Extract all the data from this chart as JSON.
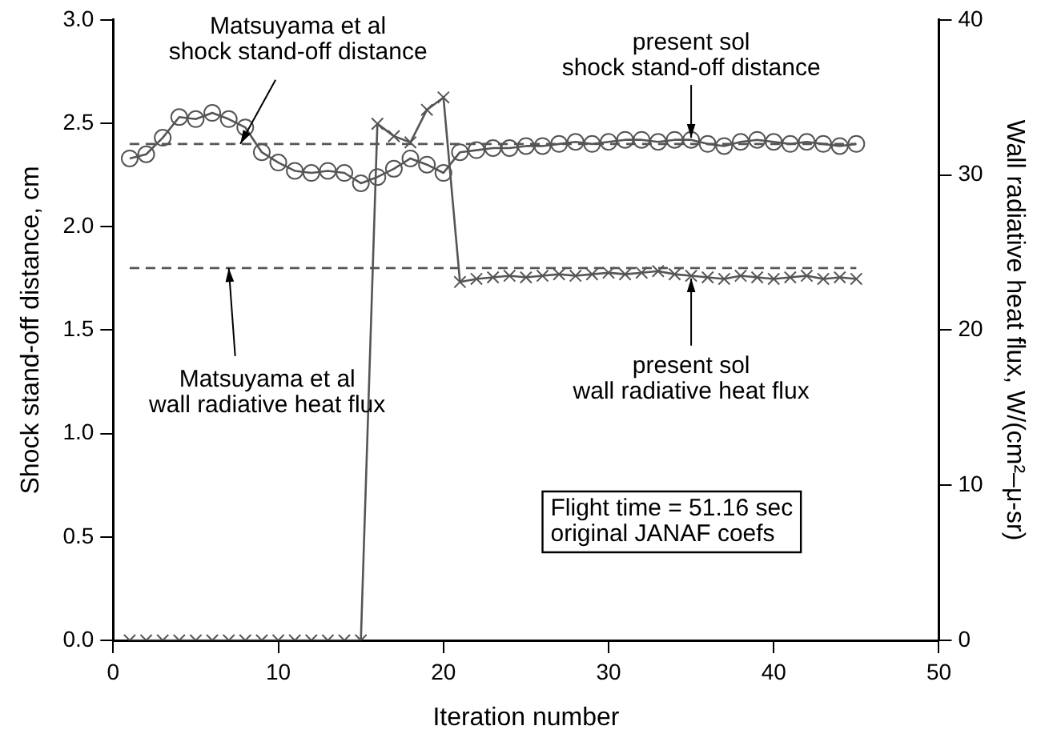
{
  "chart_data": {
    "type": "line",
    "xlabel": "Iteration number",
    "ylabel": "Shock stand-off distance, cm",
    "y2label": "Wall radiative heat flux, W/(cm²–μ-sr)",
    "xlim": [
      0,
      50
    ],
    "xticks": [
      0,
      10,
      20,
      30,
      40,
      50
    ],
    "ylim": [
      0,
      3
    ],
    "yticks": [
      {
        "value": 0,
        "label": "0.0"
      },
      {
        "value": 0.5,
        "label": "0.5"
      },
      {
        "value": 1,
        "label": "1.0"
      },
      {
        "value": 1.5,
        "label": "1.5"
      },
      {
        "value": 2,
        "label": "2.0"
      },
      {
        "value": 2.5,
        "label": "2.5"
      },
      {
        "value": 3,
        "label": "3.0"
      }
    ],
    "y2lim": [
      0,
      40
    ],
    "y2ticks": [
      0,
      10,
      20,
      30,
      40
    ],
    "grid": false,
    "legend": false,
    "series": [
      {
        "color": "#555555",
        "marker": "circle",
        "line_style": "solid",
        "x": [
          1,
          2,
          3,
          4,
          5,
          6,
          7,
          8,
          9,
          10,
          11,
          12,
          13,
          14,
          15,
          16,
          17,
          18,
          19,
          20,
          21,
          22,
          23,
          24,
          25,
          26,
          27,
          28,
          29,
          30,
          31,
          32,
          33,
          34,
          35,
          36,
          37,
          38,
          39,
          40,
          41,
          42,
          43,
          44,
          45
        ],
        "values": [
          2.33,
          2.35,
          2.43,
          2.53,
          2.52,
          2.55,
          2.52,
          2.48,
          2.36,
          2.31,
          2.27,
          2.26,
          2.27,
          2.26,
          2.21,
          2.24,
          2.28,
          2.33,
          2.3,
          2.26,
          2.36,
          2.37,
          2.38,
          2.38,
          2.39,
          2.39,
          2.4,
          2.41,
          2.4,
          2.41,
          2.42,
          2.42,
          2.41,
          2.42,
          2.42,
          2.4,
          2.39,
          2.41,
          2.42,
          2.41,
          2.4,
          2.41,
          2.4,
          2.39,
          2.4
        ]
      },
      {
        "axis": "y2",
        "color": "#555555",
        "marker": "cross",
        "line_style": "solid",
        "x": [
          1,
          2,
          3,
          4,
          5,
          6,
          7,
          8,
          9,
          10,
          11,
          12,
          13,
          14,
          15,
          16,
          17,
          18,
          19,
          20,
          21,
          22,
          23,
          24,
          25,
          26,
          27,
          28,
          29,
          30,
          31,
          32,
          33,
          34,
          35,
          36,
          37,
          38,
          39,
          40,
          41,
          42,
          43,
          44,
          45
        ],
        "values": [
          0,
          0,
          0,
          0,
          0,
          0,
          0,
          0,
          0,
          0,
          0,
          0,
          0,
          0,
          0,
          33.3,
          32.5,
          32.1,
          34.2,
          35.0,
          23.1,
          23.3,
          23.4,
          23.5,
          23.4,
          23.5,
          23.6,
          23.5,
          23.6,
          23.7,
          23.6,
          23.7,
          23.8,
          23.6,
          23.5,
          23.4,
          23.3,
          23.5,
          23.4,
          23.3,
          23.4,
          23.5,
          23.3,
          23.4,
          23.3
        ]
      },
      {
        "color": "#555555",
        "marker": "none",
        "line_style": "dashed",
        "x": [
          1,
          45
        ],
        "values": [
          2.4,
          2.4
        ]
      },
      {
        "axis": "y2",
        "color": "#555555",
        "marker": "none",
        "line_style": "dashed",
        "x": [
          1,
          45
        ],
        "values": [
          24,
          24
        ]
      }
    ],
    "annotations": [
      {
        "text": "Matsuyama et al\nshock stand-off distance",
        "x": 7.7,
        "y": 2.4
      },
      {
        "text": "present sol\nshock stand-off distance",
        "x": 35,
        "y": 2.43
      },
      {
        "text": "present sol\nwall radiative heat flux",
        "x": 35,
        "y": 1.75
      },
      {
        "text": "Matsuyama et al\nwall radiative heat flux",
        "x": 7,
        "y": 1.8
      },
      "Flight time = 51.16 sec\noriginal JANAF coefs"
    ]
  }
}
